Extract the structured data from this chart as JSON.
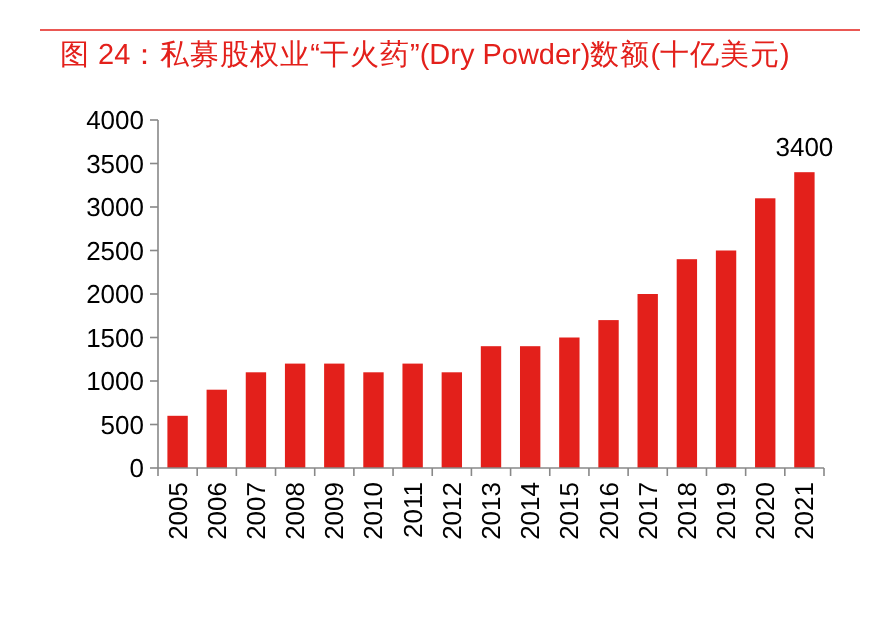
{
  "chart_data": {
    "type": "bar",
    "title": "图 24：私募股权业“干火药”(Dry Powder)数额(十亿美元)",
    "categories": [
      "2005",
      "2006",
      "2007",
      "2008",
      "2009",
      "2010",
      "2011",
      "2012",
      "2013",
      "2014",
      "2015",
      "2016",
      "2017",
      "2018",
      "2019",
      "2020",
      "2021"
    ],
    "values": [
      600,
      900,
      1100,
      1200,
      1200,
      1100,
      1200,
      1100,
      1400,
      1400,
      1500,
      1700,
      2000,
      2400,
      2500,
      3100,
      3400
    ],
    "color": "#e3201b",
    "ylim": [
      0,
      4000
    ],
    "yticks": [
      0,
      500,
      1000,
      1500,
      2000,
      2500,
      3000,
      3500,
      4000
    ],
    "grid": false,
    "annotations": [
      {
        "text": "3400",
        "x": "2021",
        "y": 3400
      }
    ]
  }
}
